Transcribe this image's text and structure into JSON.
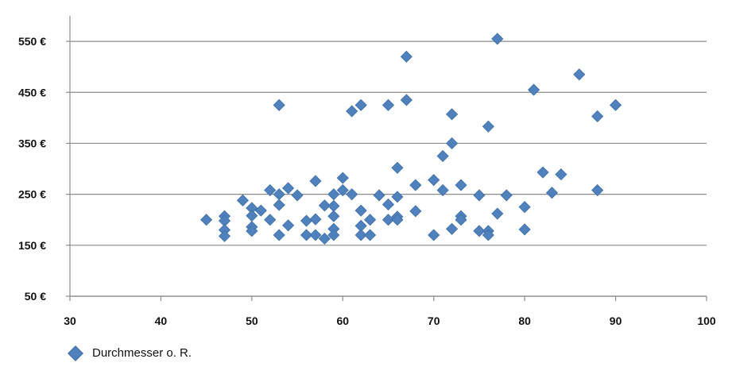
{
  "chart_data": {
    "type": "scatter",
    "title": "",
    "xlabel": "",
    "ylabel": "",
    "xlim": [
      30,
      100
    ],
    "ylim": [
      50,
      600
    ],
    "x_ticks": [
      30,
      40,
      50,
      60,
      70,
      80,
      90,
      100
    ],
    "x_tick_labels": [
      "30",
      "40",
      "50",
      "60",
      "70",
      "80",
      "90",
      "100"
    ],
    "y_ticks": [
      50,
      150,
      250,
      350,
      450,
      550
    ],
    "y_tick_labels": [
      "50 €",
      "150 €",
      "250 €",
      "350 €",
      "450 €",
      "550 €"
    ],
    "grid": "horizontal",
    "legend_position": "bottom-left",
    "series": [
      {
        "name": "Durchmesser o. R.",
        "color": "#4f81bd",
        "marker": "diamond",
        "points": [
          [
            45,
            200
          ],
          [
            47,
            207
          ],
          [
            47,
            198
          ],
          [
            47,
            180
          ],
          [
            47,
            168
          ],
          [
            49,
            238
          ],
          [
            50,
            223
          ],
          [
            50,
            208
          ],
          [
            50,
            186
          ],
          [
            50,
            178
          ],
          [
            51,
            218
          ],
          [
            52,
            258
          ],
          [
            52,
            200
          ],
          [
            53,
            425
          ],
          [
            53,
            250
          ],
          [
            53,
            229
          ],
          [
            53,
            170
          ],
          [
            54,
            262
          ],
          [
            54,
            189
          ],
          [
            55,
            248
          ],
          [
            56,
            198
          ],
          [
            56,
            170
          ],
          [
            57,
            276
          ],
          [
            57,
            201
          ],
          [
            57,
            170
          ],
          [
            58,
            228
          ],
          [
            58,
            163
          ],
          [
            59,
            250
          ],
          [
            59,
            227
          ],
          [
            59,
            207
          ],
          [
            59,
            182
          ],
          [
            59,
            170
          ],
          [
            60,
            282
          ],
          [
            60,
            258
          ],
          [
            61,
            413
          ],
          [
            61,
            250
          ],
          [
            62,
            425
          ],
          [
            62,
            218
          ],
          [
            62,
            188
          ],
          [
            62,
            170
          ],
          [
            63,
            200
          ],
          [
            63,
            170
          ],
          [
            64,
            248
          ],
          [
            65,
            425
          ],
          [
            65,
            230
          ],
          [
            65,
            200
          ],
          [
            66,
            302
          ],
          [
            66,
            245
          ],
          [
            66,
            206
          ],
          [
            66,
            200
          ],
          [
            67,
            520
          ],
          [
            67,
            435
          ],
          [
            68,
            268
          ],
          [
            68,
            217
          ],
          [
            70,
            278
          ],
          [
            70,
            170
          ],
          [
            71,
            325
          ],
          [
            71,
            258
          ],
          [
            72,
            407
          ],
          [
            72,
            350
          ],
          [
            72,
            182
          ],
          [
            73,
            268
          ],
          [
            73,
            207
          ],
          [
            73,
            200
          ],
          [
            75,
            248
          ],
          [
            75,
            178
          ],
          [
            76,
            383
          ],
          [
            76,
            178
          ],
          [
            76,
            170
          ],
          [
            77,
            555
          ],
          [
            77,
            212
          ],
          [
            78,
            248
          ],
          [
            80,
            225
          ],
          [
            80,
            181
          ],
          [
            81,
            455
          ],
          [
            82,
            293
          ],
          [
            83,
            253
          ],
          [
            84,
            289
          ],
          [
            86,
            485
          ],
          [
            88,
            403
          ],
          [
            88,
            258
          ],
          [
            90,
            425
          ]
        ]
      }
    ]
  }
}
